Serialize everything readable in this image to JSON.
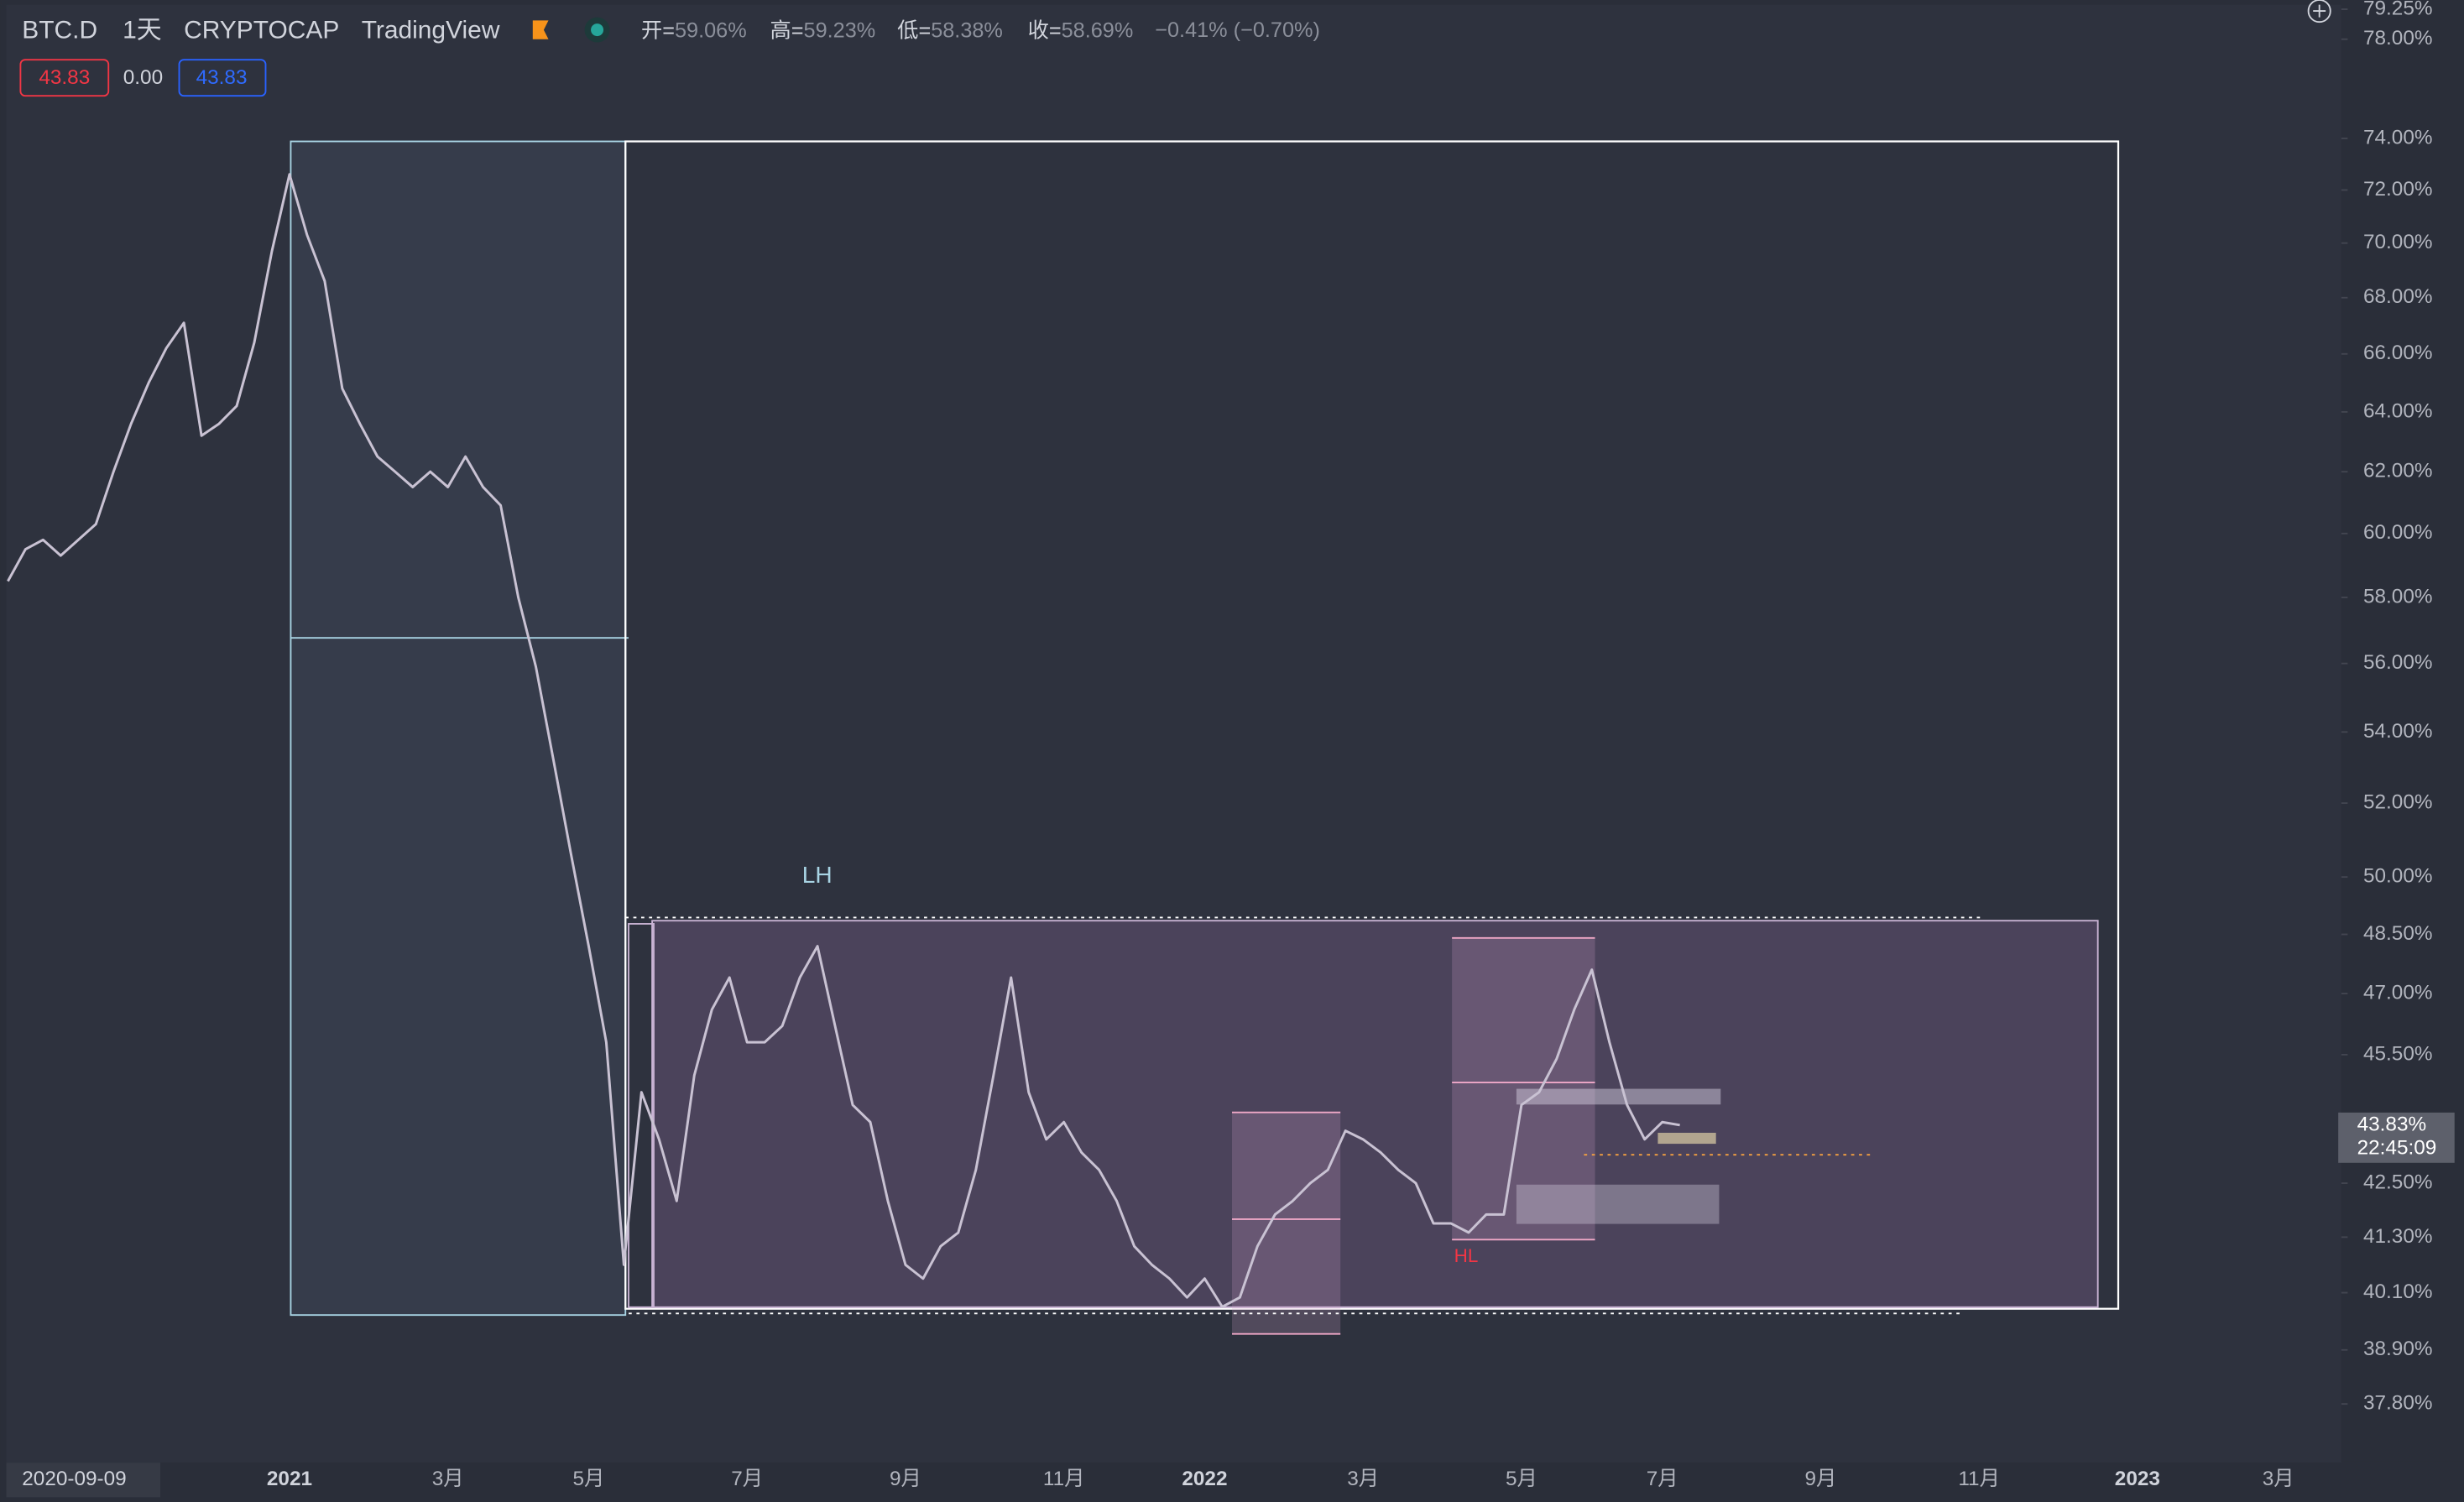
{
  "header": {
    "symbol": "BTC.D",
    "interval": "1天",
    "exchange": "CRYPTOCAP",
    "source": "TradingView",
    "ohlc": [
      {
        "label": "开=",
        "value": "59.06%"
      },
      {
        "label": "高=",
        "value": "59.23%"
      },
      {
        "label": "低=",
        "value": "58.38%"
      },
      {
        "label": "收=",
        "value": "58.69%"
      }
    ],
    "change": "−0.41% (−0.70%)",
    "indicator": [
      "43.83",
      "0.00",
      "43.83"
    ]
  },
  "chart_data": {
    "type": "line",
    "log_scale": true,
    "color": "#c9c2d3",
    "categories": [
      "2020-09-09",
      null,
      null,
      null,
      null,
      null,
      null,
      null,
      null,
      null,
      null,
      null,
      null,
      null,
      null,
      null,
      "2021",
      null,
      null,
      null,
      null,
      null,
      null,
      null,
      null,
      "3月",
      null,
      null,
      null,
      null,
      null,
      null,
      null,
      "5月",
      null,
      null,
      null,
      null,
      null,
      null,
      null,
      null,
      "7月",
      null,
      null,
      null,
      null,
      null,
      null,
      null,
      null,
      "9月",
      null,
      null,
      null,
      null,
      null,
      null,
      null,
      null,
      "11月",
      null,
      null,
      null,
      null,
      null,
      null,
      null,
      "2022",
      null,
      null,
      null,
      null,
      null,
      null,
      null,
      null,
      "3月",
      null,
      null,
      null,
      null,
      null,
      null,
      null,
      null,
      "5月",
      null,
      null,
      null,
      null,
      null,
      null,
      null,
      "7月",
      null,
      null,
      null,
      null,
      null,
      null,
      null,
      null,
      "9月",
      null,
      null,
      null,
      null,
      null,
      null,
      null,
      null,
      "11月",
      null,
      null,
      null,
      null,
      null,
      null,
      null,
      null,
      "2023",
      null,
      null,
      null,
      null,
      null,
      null,
      null,
      "3月",
      null,
      null
    ],
    "series": [
      {
        "name": "BTC.D",
        "color": "#c9c2d3",
        "values": [
          58.5,
          59.5,
          59.8,
          59.3,
          59.8,
          60.3,
          62.0,
          63.6,
          65.0,
          66.2,
          67.1,
          63.2,
          63.6,
          64.2,
          66.4,
          69.7,
          72.6,
          70.3,
          68.6,
          64.8,
          63.6,
          62.5,
          62.0,
          61.5,
          62.0,
          61.5,
          62.5,
          61.5,
          60.9,
          58.0,
          55.9,
          53.2,
          50.6,
          48.2,
          45.8,
          40.7,
          44.6,
          43.5,
          42.1,
          45.0,
          46.6,
          47.4,
          45.8,
          45.8,
          46.2,
          47.4,
          48.2,
          46.2,
          44.3,
          43.9,
          42.1,
          40.7,
          40.4,
          41.1,
          41.4,
          42.8,
          45.0,
          47.4,
          44.6,
          43.5,
          43.9,
          43.2,
          42.8,
          42.1,
          41.1,
          40.7,
          40.4,
          40.0,
          40.4,
          39.8,
          40.0,
          41.1,
          41.8,
          42.1,
          42.5,
          42.8,
          43.7,
          43.5,
          43.2,
          42.8,
          42.5,
          41.6,
          41.6,
          41.4,
          41.8,
          41.8,
          44.3,
          44.6,
          45.4,
          46.6,
          47.6,
          45.8,
          44.3,
          43.5,
          43.9,
          43.83,
          null,
          null,
          null,
          null,
          null,
          null,
          null,
          null,
          null,
          null,
          null,
          null,
          null,
          null,
          null,
          null,
          null,
          null,
          null,
          null,
          null,
          null,
          null,
          null,
          null,
          null,
          null,
          null,
          null,
          null,
          null,
          null,
          null,
          null,
          null,
          null
        ]
      }
    ],
    "ylim": [
      36.67,
      79.64
    ],
    "yticks": [
      {
        "value": 79.25,
        "label": "79.25%"
      },
      {
        "value": 78,
        "label": "78.00%"
      },
      {
        "value": 74,
        "label": "74.00%"
      },
      {
        "value": 72,
        "label": "72.00%"
      },
      {
        "value": 70,
        "label": "70.00%"
      },
      {
        "value": 68,
        "label": "68.00%"
      },
      {
        "value": 66,
        "label": "66.00%"
      },
      {
        "value": 64,
        "label": "64.00%"
      },
      {
        "value": 62,
        "label": "62.00%"
      },
      {
        "value": 60,
        "label": "60.00%"
      },
      {
        "value": 58,
        "label": "58.00%"
      },
      {
        "value": 56,
        "label": "56.00%"
      },
      {
        "value": 54,
        "label": "54.00%"
      },
      {
        "value": 52,
        "label": "52.00%"
      },
      {
        "value": 50,
        "label": "50.00%"
      },
      {
        "value": 48.5,
        "label": "48.50%"
      },
      {
        "value": 47,
        "label": "47.00%"
      },
      {
        "value": 45.5,
        "label": "45.50%"
      },
      {
        "value": 42.5,
        "label": "42.50%"
      },
      {
        "value": 41.3,
        "label": "41.30%"
      },
      {
        "value": 40.1,
        "label": "40.10%"
      },
      {
        "value": 38.9,
        "label": "38.90%"
      },
      {
        "value": 37.8,
        "label": "37.80%"
      }
    ],
    "last_price": {
      "value": 43.83,
      "label": "43.83%",
      "countdown": "22:45:09"
    },
    "annotations": [
      "LH",
      "HL"
    ]
  }
}
